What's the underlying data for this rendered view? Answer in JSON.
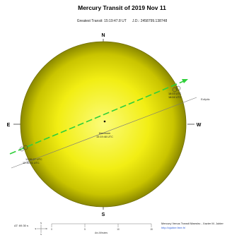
{
  "header": {
    "title": "Mercury Transit of 2019 Nov 11",
    "subtitle": "Greatest Transit: 15:19:47.8 UT      J.D.: 2458799.138748"
  },
  "compass": {
    "north": "N",
    "south": "S",
    "east": "E",
    "west": "W"
  },
  "labels": {
    "ecliptic": "Ecliptic",
    "ingress_lines": [
      "12:35:27 UTC",
      "12:35:21 UTC"
    ],
    "egress_lines": [
      "18:03 UTC",
      "18:04 UTC"
    ],
    "maximum_title": "Maximum",
    "maximum_time": "15:19:48 UTC"
  },
  "scale": {
    "delta_t": "ΔT: 69.30 s",
    "axis_label": "Arc-Minutes",
    "ticks": [
      "0",
      "5",
      "10",
      "15"
    ]
  },
  "credits": {
    "line1": "Mercury Venus Transit Maestro - Xavier M. Jubier",
    "line2": "http://xjubier.free.fr/"
  },
  "colors": {
    "sun_core": "#fbfb7a",
    "sun_mid": "#f2ee14",
    "sun_limb": "#8a8800",
    "path": "#2fcf3a",
    "ecliptic": "#7a7a7a"
  }
}
